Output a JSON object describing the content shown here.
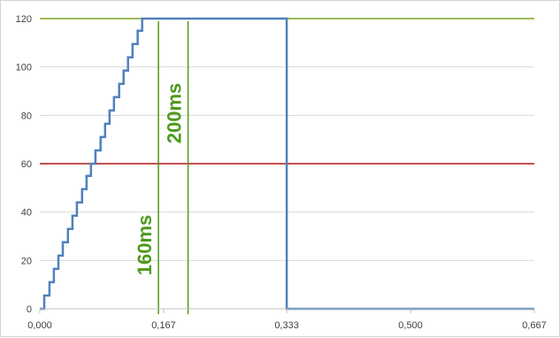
{
  "chart_data": {
    "type": "line",
    "title": "",
    "xlabel": "",
    "ylabel": "",
    "xlim": [
      0,
      0.667
    ],
    "ylim": [
      0,
      120
    ],
    "grid": true,
    "x_ticks": [
      {
        "value": 0.0,
        "label": "0,000"
      },
      {
        "value": 0.167,
        "label": "0,167"
      },
      {
        "value": 0.333,
        "label": "0,333"
      },
      {
        "value": 0.5,
        "label": "0,500"
      },
      {
        "value": 0.667,
        "label": "0,667"
      }
    ],
    "y_ticks": [
      {
        "value": 0,
        "label": "0"
      },
      {
        "value": 20,
        "label": "20"
      },
      {
        "value": 40,
        "label": "40"
      },
      {
        "value": 60,
        "label": "60"
      },
      {
        "value": 80,
        "label": "80"
      },
      {
        "value": 100,
        "label": "100"
      },
      {
        "value": 120,
        "label": "120"
      }
    ],
    "series": [
      {
        "style": "step",
        "color": "#4f81bd",
        "x": [
          0.0,
          0.006,
          0.013,
          0.019,
          0.025,
          0.031,
          0.038,
          0.044,
          0.05,
          0.057,
          0.063,
          0.069,
          0.075,
          0.082,
          0.088,
          0.094,
          0.1,
          0.107,
          0.113,
          0.119,
          0.125,
          0.132,
          0.138,
          0.144,
          0.151,
          0.157,
          0.163,
          0.169,
          0.176,
          0.182,
          0.188,
          0.195,
          0.333,
          0.333,
          0.667
        ],
        "y": [
          0,
          5.5,
          11,
          16.5,
          22,
          27.5,
          33,
          38.5,
          44,
          49.5,
          55,
          60,
          65.5,
          71,
          76.5,
          82,
          87.5,
          93,
          98.5,
          104,
          109.5,
          115,
          120,
          120,
          120,
          120,
          120,
          120,
          120,
          120,
          120,
          120,
          120,
          0,
          0
        ]
      }
    ],
    "reference_lines": [
      {
        "orientation": "horizontal",
        "value": 60,
        "color": "#c0504d"
      },
      {
        "orientation": "horizontal",
        "value": 120,
        "color": "#9bbb59"
      },
      {
        "orientation": "vertical",
        "value": 0.16,
        "color": "#4e9a1c",
        "label": "160ms"
      },
      {
        "orientation": "vertical",
        "value": 0.2,
        "color": "#4e9a1c",
        "label": "200ms"
      }
    ]
  }
}
